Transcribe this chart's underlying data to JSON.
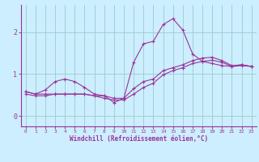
{
  "bg_color": "#cceeff",
  "line_color": "#993399",
  "grid_color": "#99cccc",
  "x_label": "Windchill (Refroidissement éolien,°C)",
  "x_ticks": [
    0,
    1,
    2,
    3,
    4,
    5,
    6,
    7,
    8,
    9,
    10,
    11,
    12,
    13,
    14,
    15,
    16,
    17,
    18,
    19,
    20,
    21,
    22,
    23
  ],
  "y_ticks": [
    0,
    1,
    2
  ],
  "ylim": [
    -0.25,
    2.65
  ],
  "xlim": [
    -0.5,
    23.5
  ],
  "line1_x": [
    0,
    1,
    2,
    3,
    4,
    5,
    6,
    7,
    8,
    9,
    10,
    11,
    12,
    13,
    14,
    15,
    16,
    17,
    18,
    19,
    20,
    21,
    22,
    23
  ],
  "line1_y": [
    0.58,
    0.52,
    0.62,
    0.82,
    0.88,
    0.82,
    0.68,
    0.52,
    0.48,
    0.32,
    0.42,
    1.28,
    1.72,
    1.78,
    2.18,
    2.32,
    2.05,
    1.48,
    1.3,
    1.25,
    1.2,
    1.18,
    1.22,
    1.18
  ],
  "line2_x": [
    0,
    1,
    2,
    3,
    4,
    5,
    6,
    7,
    8,
    9,
    10,
    11,
    12,
    13,
    14,
    15,
    16,
    17,
    18,
    19,
    20,
    21,
    22,
    23
  ],
  "line2_y": [
    0.58,
    0.52,
    0.52,
    0.52,
    0.52,
    0.52,
    0.52,
    0.48,
    0.48,
    0.42,
    0.42,
    0.65,
    0.82,
    0.88,
    1.08,
    1.15,
    1.22,
    1.32,
    1.38,
    1.4,
    1.32,
    1.2,
    1.22,
    1.18
  ],
  "line3_x": [
    0,
    1,
    2,
    3,
    4,
    5,
    6,
    7,
    8,
    9,
    10,
    11,
    12,
    13,
    14,
    15,
    16,
    17,
    18,
    19,
    20,
    21,
    22,
    23
  ],
  "line3_y": [
    0.52,
    0.48,
    0.48,
    0.52,
    0.52,
    0.52,
    0.52,
    0.48,
    0.42,
    0.38,
    0.38,
    0.52,
    0.68,
    0.78,
    0.98,
    1.08,
    1.15,
    1.25,
    1.3,
    1.33,
    1.28,
    1.18,
    1.2,
    1.18
  ],
  "figsize": [
    3.2,
    2.0
  ],
  "dpi": 100
}
